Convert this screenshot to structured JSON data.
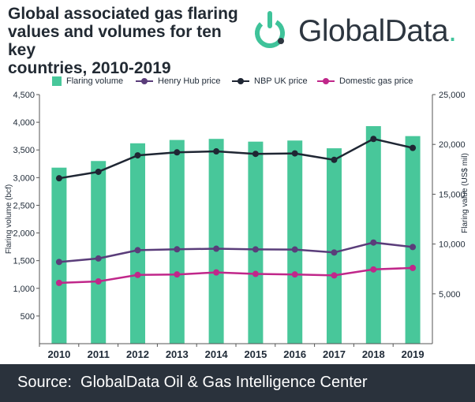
{
  "header": {
    "title_lines": [
      "Global associated gas flaring",
      "values and volumes for ten key",
      "countries, 2010-2019"
    ],
    "logo_text": "GlobalData",
    "logo_dot": "."
  },
  "footer": {
    "source": "Source:  GlobalData Oil & Gas Intelligence Center"
  },
  "colors": {
    "bar": "#48c79a",
    "henry_hub": "#5a3d7a",
    "nbp": "#1f2633",
    "domestic": "#c0278a",
    "footer_bg": "#2a323c",
    "logo_green": "#3fc39a"
  },
  "chart_data": {
    "type": "bar",
    "categories": [
      "2010",
      "2011",
      "2012",
      "2013",
      "2014",
      "2015",
      "2016",
      "2017",
      "2018",
      "2019"
    ],
    "ylabel": "Flaring volume (bcf)",
    "y2label": "Flaring value (US$ mil)",
    "ylim": [
      0,
      4500
    ],
    "y2lim": [
      0,
      25000
    ],
    "yticks": [
      "500",
      "1,000",
      "1,500",
      "2,000",
      "2,500",
      "3,000",
      "3,500",
      "4,000",
      "4,500"
    ],
    "ytick_values": [
      500,
      1000,
      1500,
      2000,
      2500,
      3000,
      3500,
      4000,
      4500
    ],
    "y2ticks": [
      "5,000",
      "10,000",
      "15,000",
      "20,000",
      "25,000"
    ],
    "y2tick_values": [
      5000,
      10000,
      15000,
      20000,
      25000
    ],
    "legend_position": "top",
    "grid": false,
    "series": [
      {
        "name": "Flaring volume",
        "kind": "bar",
        "axis": "left",
        "values": [
          3180,
          3300,
          3620,
          3680,
          3700,
          3650,
          3670,
          3530,
          3930,
          3750
        ]
      },
      {
        "name": "Henry Hub price",
        "kind": "line",
        "axis": "right",
        "values": [
          8200,
          8550,
          9380,
          9470,
          9530,
          9460,
          9450,
          9150,
          10150,
          9700
        ]
      },
      {
        "name": "NBP UK price",
        "kind": "line",
        "axis": "right",
        "values": [
          16600,
          17250,
          18900,
          19200,
          19300,
          19050,
          19100,
          18450,
          20550,
          19650
        ]
      },
      {
        "name": "Domestic gas price",
        "kind": "line",
        "axis": "right",
        "values": [
          6100,
          6250,
          6900,
          6950,
          7150,
          7000,
          6950,
          6850,
          7450,
          7600
        ]
      }
    ]
  }
}
